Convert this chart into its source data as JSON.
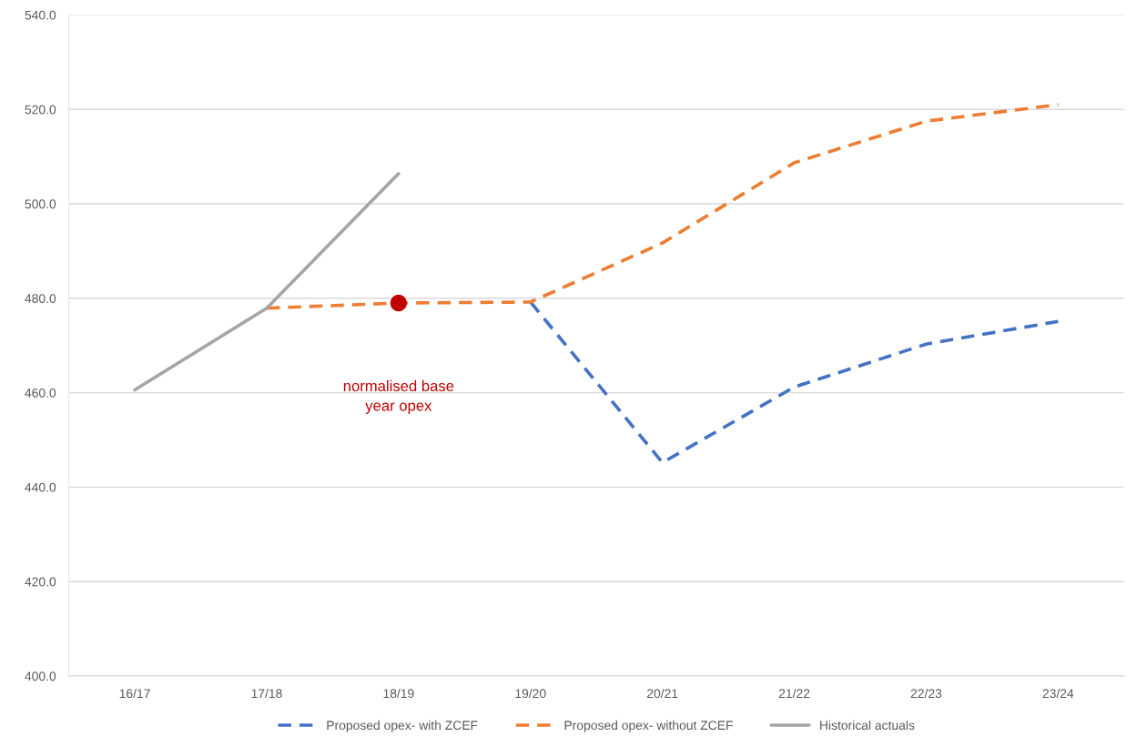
{
  "chart_data": {
    "type": "line",
    "categories": [
      "16/17",
      "17/18",
      "18/19",
      "19/20",
      "20/21",
      "21/22",
      "22/23",
      "23/24"
    ],
    "series": [
      {
        "name": "Proposed opex- with ZCEF",
        "color": "#4472c4",
        "line_style": "dashed",
        "values": [
          null,
          null,
          null,
          479.2,
          445.2,
          461.2,
          470.3,
          475.1
        ]
      },
      {
        "name": "Proposed opex- without ZCEF",
        "color": "#ed7d31",
        "line_style": "dashed",
        "values": [
          null,
          477.9,
          479.0,
          479.2,
          491.7,
          508.7,
          517.5,
          521.0
        ]
      },
      {
        "name": "Historical actuals",
        "color": "#a5a5a5",
        "line_style": "solid",
        "values": [
          460.6,
          477.9,
          506.4,
          null,
          null,
          null,
          null,
          null
        ]
      },
      {
        "type": "scatter",
        "color": "#c00000",
        "marker": "circle",
        "x": [
          "18/19"
        ],
        "values": [
          479.0
        ]
      }
    ],
    "ylim": [
      400,
      540
    ],
    "yticks": [
      {
        "value": 400,
        "label": "400.0"
      },
      {
        "value": 420,
        "label": "420.0"
      },
      {
        "value": 440,
        "label": "440.0"
      },
      {
        "value": 460,
        "label": "460.0"
      },
      {
        "value": 480,
        "label": "480.0"
      },
      {
        "value": 500,
        "label": "500.0"
      },
      {
        "value": 520,
        "label": "520.0"
      },
      {
        "value": 540,
        "label": "540.0"
      }
    ],
    "grid": "y",
    "legend": "bottom",
    "annotations": [
      "normalised base\nyear opex"
    ]
  }
}
